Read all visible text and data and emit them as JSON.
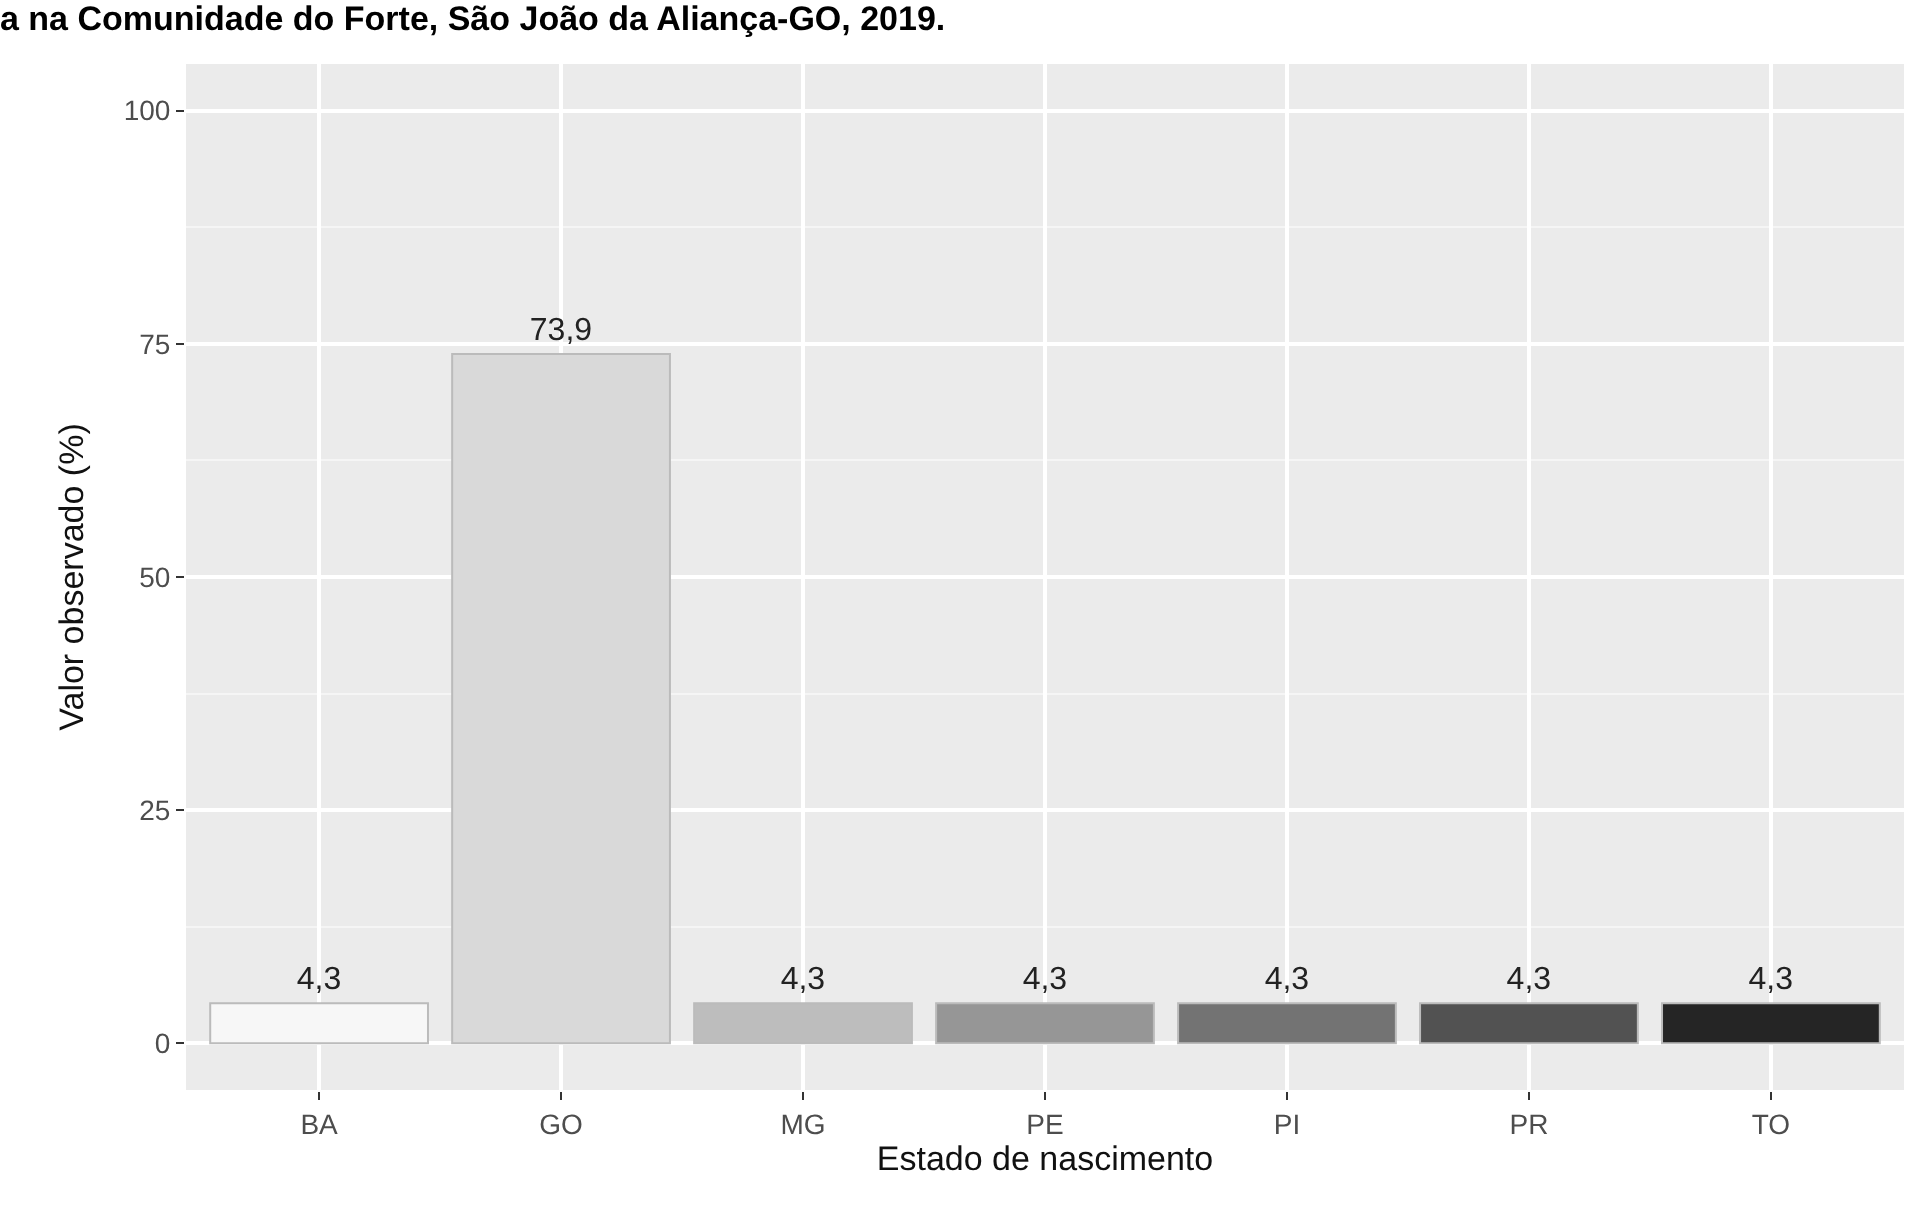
{
  "chart_data": {
    "type": "bar",
    "title": "a na Comunidade do Forte, São João da Aliança-GO, 2019.",
    "xlabel": "Estado de nascimento",
    "ylabel": "Valor observado (%)",
    "categories": [
      "BA",
      "GO",
      "MG",
      "PE",
      "PI",
      "PR",
      "TO"
    ],
    "values": [
      4.3,
      73.9,
      4.3,
      4.3,
      4.3,
      4.3,
      4.3
    ],
    "value_labels": [
      "4,3",
      "73,9",
      "4,3",
      "4,3",
      "4,3",
      "4,3",
      "4,3"
    ],
    "colors": [
      "#f7f7f7",
      "#d9d9d9",
      "#bdbdbd",
      "#969696",
      "#737373",
      "#525252",
      "#252525"
    ],
    "ylim": [
      -5,
      105
    ],
    "yticks": [
      0,
      25,
      50,
      75,
      100
    ],
    "grid": true,
    "legend": false
  }
}
